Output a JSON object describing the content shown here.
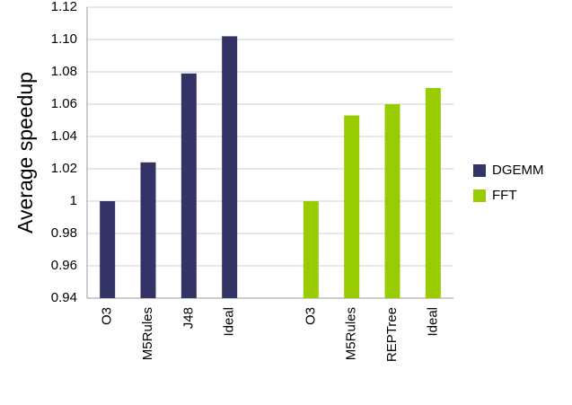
{
  "chart_data": {
    "type": "bar",
    "y_label": "Average speedup",
    "categories": [
      "O3",
      "M5Rules",
      "J48",
      "Ideal",
      null,
      "O3",
      "M5Rules",
      "REPTree",
      "Ideal"
    ],
    "series": [
      {
        "name": "DGEMM",
        "color": "#333366",
        "values": [
          1.0,
          1.024,
          1.079,
          1.102,
          null,
          null,
          null,
          null,
          null
        ]
      },
      {
        "name": "FFT",
        "color": "#99cc00",
        "values": [
          null,
          null,
          null,
          null,
          null,
          1.0,
          1.053,
          1.06,
          1.07
        ]
      }
    ],
    "ylim": [
      0.94,
      1.12
    ],
    "yticks": [
      0.94,
      0.96,
      0.98,
      1,
      1.02,
      1.04,
      1.06,
      1.08,
      {
        "value": 1.1,
        "label": "1.10"
      },
      1.12
    ],
    "grid": true,
    "legend": "right"
  }
}
